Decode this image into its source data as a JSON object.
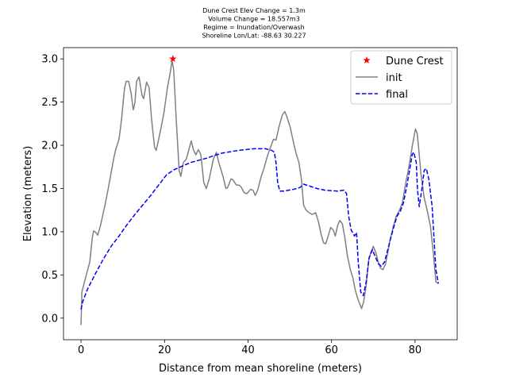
{
  "chart_data": {
    "type": "line",
    "title": [
      "Dune Crest Elev Change = 1.3m",
      "Volume Change = 18.557m3",
      "Regime = Inundation/Overwash",
      "Shoreline Lon/Lat: -88.63 30.227"
    ],
    "xlabel": "Distance from mean shoreline (meters)",
    "ylabel": "Elevation (meters)",
    "xlim": [
      -4.2,
      90.1
    ],
    "ylim": [
      -0.25,
      3.13
    ],
    "xticks": [
      0,
      20,
      40,
      60,
      80
    ],
    "yticks": [
      {
        "value": 0,
        "label": "0.0"
      },
      0.5,
      {
        "value": 1,
        "label": "1.0"
      },
      1.5,
      {
        "value": 2,
        "label": "2.0"
      },
      2.5,
      {
        "value": 3,
        "label": "3.0"
      }
    ],
    "legend": "upper right",
    "series": [
      {
        "name": "Dune Crest",
        "color": "#ff0000",
        "style": "star",
        "x": [
          22
        ],
        "values": [
          3.0
        ]
      },
      {
        "name": "init",
        "color": "#808080",
        "style": "solid",
        "x": [
          0,
          0.2,
          1.1,
          2.1,
          2.7,
          3.0,
          3.6,
          4.0,
          4.7,
          5.7,
          6.6,
          7.8,
          8.3,
          9.1,
          9.7,
          10.4,
          10.8,
          11.4,
          12.0,
          12.5,
          12.9,
          13.3,
          13.9,
          14.6,
          15.0,
          15.7,
          16.3,
          16.9,
          17.6,
          18.0,
          18.6,
          19.4,
          19.9,
          20.7,
          21.4,
          21.8,
          22.2,
          22.8,
          23.5,
          23.9,
          24.5,
          25.2,
          26.0,
          26.4,
          26.9,
          27.5,
          28.1,
          28.7,
          29.4,
          30.0,
          30.7,
          31.7,
          32.4,
          33.0,
          34.0,
          34.7,
          35.1,
          35.9,
          36.4,
          37.2,
          37.8,
          38.3,
          39.1,
          39.7,
          40.6,
          41.2,
          41.7,
          42.3,
          43.1,
          43.8,
          44.6,
          45.4,
          46.1,
          46.7,
          47.4,
          48.2,
          48.8,
          49.3,
          50.1,
          50.9,
          51.6,
          52.2,
          52.8,
          53.3,
          53.9,
          54.6,
          55.4,
          56.2,
          56.9,
          57.5,
          58.1,
          58.6,
          59.2,
          59.8,
          60.4,
          60.9,
          61.5,
          62.0,
          62.6,
          63.2,
          63.8,
          64.5,
          65.1,
          65.7,
          66.4,
          67.2,
          67.7,
          68.3,
          68.9,
          69.4,
          70.0,
          70.6,
          71.2,
          71.7,
          72.3,
          72.9,
          73.4,
          74.0,
          74.8,
          75.5,
          76.3,
          77.0,
          77.8,
          78.6,
          79.3,
          80.1,
          80.5,
          80.9,
          81.4,
          82.2,
          82.9,
          83.7,
          84.4,
          85.0,
          85.6
        ],
        "values": [
          -0.08,
          0.3,
          0.47,
          0.65,
          0.93,
          1.01,
          0.99,
          0.96,
          1.08,
          1.3,
          1.52,
          1.84,
          1.95,
          2.07,
          2.3,
          2.65,
          2.74,
          2.74,
          2.6,
          2.41,
          2.49,
          2.74,
          2.79,
          2.58,
          2.54,
          2.73,
          2.67,
          2.3,
          1.98,
          1.94,
          2.07,
          2.26,
          2.39,
          2.67,
          2.85,
          2.98,
          2.87,
          2.3,
          1.71,
          1.64,
          1.8,
          1.84,
          1.98,
          2.05,
          1.95,
          1.89,
          1.95,
          1.89,
          1.57,
          1.5,
          1.61,
          1.84,
          1.92,
          1.8,
          1.64,
          1.5,
          1.51,
          1.61,
          1.6,
          1.54,
          1.54,
          1.52,
          1.45,
          1.44,
          1.49,
          1.48,
          1.42,
          1.48,
          1.63,
          1.73,
          1.87,
          1.98,
          2.07,
          2.06,
          2.21,
          2.35,
          2.39,
          2.33,
          2.21,
          2.03,
          1.89,
          1.8,
          1.6,
          1.31,
          1.25,
          1.22,
          1.2,
          1.22,
          1.11,
          0.97,
          0.87,
          0.86,
          0.95,
          1.05,
          1.02,
          0.95,
          1.08,
          1.13,
          1.09,
          0.93,
          0.72,
          0.56,
          0.47,
          0.32,
          0.21,
          0.11,
          0.19,
          0.38,
          0.67,
          0.76,
          0.83,
          0.76,
          0.65,
          0.58,
          0.56,
          0.62,
          0.74,
          0.9,
          1.06,
          1.18,
          1.25,
          1.34,
          1.57,
          1.77,
          1.98,
          2.19,
          2.14,
          1.95,
          1.68,
          1.39,
          1.25,
          1.06,
          0.74,
          0.42,
          0.4
        ]
      },
      {
        "name": "final",
        "color": "#0000ff",
        "style": "dashed",
        "x": [
          0,
          0.4,
          1.5,
          3.4,
          5.3,
          7.2,
          9.1,
          11.0,
          12.9,
          14.8,
          16.7,
          18.6,
          20.5,
          22.4,
          26.2,
          30.0,
          33.8,
          37.6,
          41.4,
          44.2,
          45.7,
          46.3,
          46.7,
          47.1,
          47.6,
          48.6,
          50.9,
          52.4,
          53.3,
          54.6,
          56.5,
          58.4,
          61.3,
          63.0,
          63.6,
          64.1,
          64.7,
          65.5,
          66.0,
          66.4,
          67.0,
          67.6,
          68.3,
          69.0,
          69.8,
          70.4,
          71.2,
          71.9,
          72.7,
          73.4,
          74.2,
          75.0,
          75.7,
          76.5,
          77.2,
          78.0,
          78.7,
          79.3,
          79.7,
          80.3,
          80.6,
          81.0,
          81.6,
          82.2,
          82.7,
          83.3,
          84.1,
          84.6,
          85.0,
          85.6
        ],
        "values": [
          0.1,
          0.19,
          0.33,
          0.51,
          0.68,
          0.83,
          0.95,
          1.08,
          1.2,
          1.31,
          1.42,
          1.54,
          1.66,
          1.72,
          1.8,
          1.85,
          1.91,
          1.94,
          1.96,
          1.96,
          1.94,
          1.92,
          1.8,
          1.57,
          1.47,
          1.47,
          1.49,
          1.51,
          1.55,
          1.53,
          1.5,
          1.48,
          1.47,
          1.48,
          1.44,
          1.18,
          1.02,
          0.95,
          0.99,
          0.65,
          0.3,
          0.26,
          0.42,
          0.7,
          0.79,
          0.72,
          0.63,
          0.6,
          0.65,
          0.78,
          0.93,
          1.07,
          1.18,
          1.24,
          1.33,
          1.52,
          1.71,
          1.89,
          1.92,
          1.8,
          1.48,
          1.29,
          1.48,
          1.71,
          1.73,
          1.61,
          1.29,
          0.88,
          0.56,
          0.4
        ]
      }
    ]
  }
}
